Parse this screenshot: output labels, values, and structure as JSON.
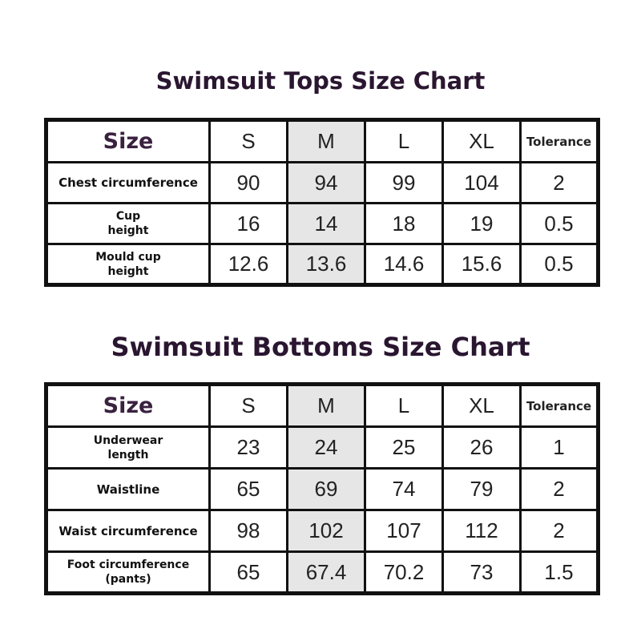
{
  "tops": {
    "title": "Swimsuit Tops Size Chart",
    "header": [
      "Size",
      "S",
      "M",
      "L",
      "XL",
      "Tolerance"
    ],
    "rows": [
      {
        "label": "Chest circumference",
        "values": [
          "90",
          "94",
          "99",
          "104",
          "2"
        ]
      },
      {
        "label": "Cup\nheight",
        "values": [
          "16",
          "14",
          "18",
          "19",
          "0.5"
        ]
      },
      {
        "label": "Mould cup\nheight",
        "values": [
          "12.6",
          "13.6",
          "14.6",
          "15.6",
          "0.5"
        ]
      }
    ]
  },
  "bottoms": {
    "title": "Swimsuit Bottoms Size Chart",
    "header": [
      "Size",
      "S",
      "M",
      "L",
      "XL",
      "Tolerance"
    ],
    "rows": [
      {
        "label": "Underwear\nlength",
        "values": [
          "23",
          "24",
          "25",
          "26",
          "1"
        ]
      },
      {
        "label": "Waistline",
        "values": [
          "65",
          "69",
          "74",
          "79",
          "2"
        ]
      },
      {
        "label": "Waist circumference",
        "values": [
          "98",
          "102",
          "107",
          "112",
          "2"
        ]
      },
      {
        "label": "Foot circumference\n(pants)",
        "values": [
          "65",
          "67.4",
          "70.2",
          "73",
          "1.5"
        ]
      }
    ]
  },
  "colors": {
    "title": "#2a1630",
    "highlight_column": "#e6e6e6",
    "border": "#111111"
  }
}
